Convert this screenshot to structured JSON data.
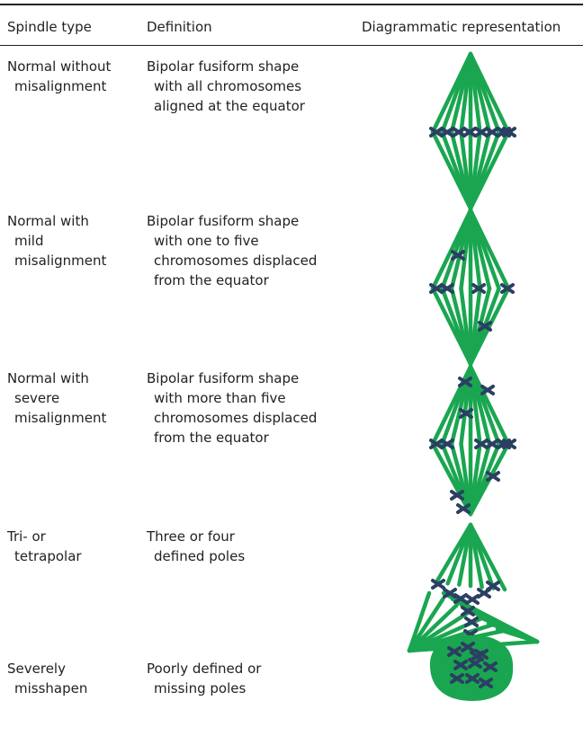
{
  "table": {
    "header": [
      "Spindle type",
      "Definition",
      "Diagrammatic representation"
    ],
    "rows": [
      {
        "type": [
          "Normal without",
          "misalignment"
        ],
        "definition": [
          "Bipolar fusiform shape",
          "with all chromosomes",
          "aligned at the equator"
        ]
      },
      {
        "type": [
          "Normal with",
          "mild",
          "misalignment"
        ],
        "definition": [
          "Bipolar fusiform shape",
          "with one to five",
          "chromosomes displaced",
          "from the equator"
        ]
      },
      {
        "type": [
          "Normal with",
          "severe",
          "misalignment"
        ],
        "definition": [
          "Bipolar fusiform shape",
          "with more than five",
          "chromosomes displaced",
          "from the equator"
        ]
      },
      {
        "type": [
          "Tri- or",
          "tetrapolar"
        ],
        "definition": [
          "Three or four",
          "defined poles"
        ]
      },
      {
        "type": [
          "Severely",
          "misshapen"
        ],
        "definition": [
          "Poorly defined or",
          "missing poles"
        ]
      }
    ]
  }
}
